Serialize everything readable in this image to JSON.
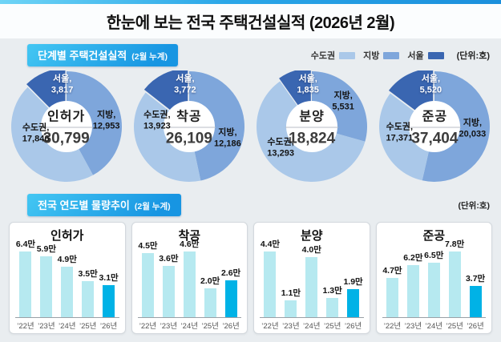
{
  "header": {
    "title": "한눈에 보는 전국 주택건설실적 (2026년 2월)"
  },
  "sections": {
    "stage": {
      "title": "단계별 주택건설실적",
      "subtitle": "(2월 누계)"
    },
    "trend": {
      "title": "전국 연도별 물량추이",
      "subtitle": "(2월 누계)",
      "unit": "(단위:호)"
    }
  },
  "legend": {
    "items": [
      {
        "label": "수도권",
        "color": "#aac8e9"
      },
      {
        "label": "지방",
        "color": "#7ea6db"
      },
      {
        "label": "서울",
        "color": "#3a66b1"
      }
    ],
    "unit": "(단위:호)"
  },
  "colors": {
    "metro": "#aac8e9",
    "province": "#7ea6db",
    "seoul": "#3a66b1",
    "bar": "#b6e9f0",
    "bar_highlight": "#00b2e6"
  },
  "chart_data": [
    {
      "type": "pie",
      "title": "인허가",
      "total": 30799,
      "series": [
        {
          "name": "수도권",
          "value": 17846
        },
        {
          "name": "지방",
          "value": 12953
        },
        {
          "name": "서울",
          "value": 3817
        }
      ]
    },
    {
      "type": "pie",
      "title": "착공",
      "total": 26109,
      "series": [
        {
          "name": "수도권",
          "value": 13923
        },
        {
          "name": "지방",
          "value": 12186
        },
        {
          "name": "서울",
          "value": 3772
        }
      ]
    },
    {
      "type": "pie",
      "title": "분양",
      "total": 18824,
      "series": [
        {
          "name": "수도권",
          "value": 13293
        },
        {
          "name": "지방",
          "value": 5531
        },
        {
          "name": "서울",
          "value": 1835
        }
      ]
    },
    {
      "type": "pie",
      "title": "준공",
      "total": 37404,
      "series": [
        {
          "name": "수도권",
          "value": 17371
        },
        {
          "name": "지방",
          "value": 20033
        },
        {
          "name": "서울",
          "value": 5520
        }
      ]
    },
    {
      "type": "bar",
      "title": "인허가",
      "unit": "만",
      "categories": [
        "’22년",
        "’23년",
        "’24년",
        "’25년",
        "’26년"
      ],
      "values": [
        6.4,
        5.9,
        4.9,
        3.5,
        3.1
      ],
      "highlight": "’26년"
    },
    {
      "type": "bar",
      "title": "착공",
      "unit": "만",
      "categories": [
        "’22년",
        "’23년",
        "’24년",
        "’25년",
        "’26년"
      ],
      "values": [
        4.5,
        3.6,
        4.6,
        2.0,
        2.6
      ],
      "highlight": "’26년"
    },
    {
      "type": "bar",
      "title": "분양",
      "unit": "만",
      "categories": [
        "’22년",
        "’23년",
        "’24년",
        "’25년",
        "’26년"
      ],
      "values": [
        4.4,
        1.1,
        4.0,
        1.3,
        1.9
      ],
      "highlight": "’26년"
    },
    {
      "type": "bar",
      "title": "준공",
      "unit": "만",
      "categories": [
        "’22년",
        "’23년",
        "’24년",
        "’25년",
        "’26년"
      ],
      "values": [
        4.7,
        6.2,
        6.5,
        7.8,
        3.7
      ],
      "highlight": "’26년"
    }
  ]
}
